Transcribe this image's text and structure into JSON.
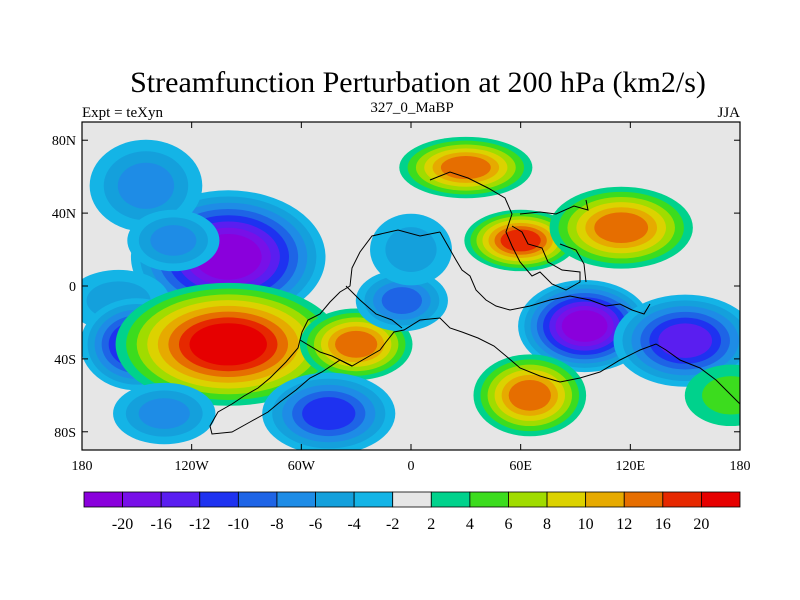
{
  "title": "Streamfunction Perturbation at 200 hPa (km2/s)",
  "left_label": "Expt = teXyn",
  "center_label": "327_0_MaBP",
  "right_label": "JJA",
  "y_ticks": [
    {
      "lat": 80,
      "label": "80N"
    },
    {
      "lat": 40,
      "label": "40N"
    },
    {
      "lat": 0,
      "label": "0"
    },
    {
      "lat": -40,
      "label": "40S"
    },
    {
      "lat": -80,
      "label": "80S"
    }
  ],
  "x_ticks": [
    {
      "lon": -180,
      "label": "180"
    },
    {
      "lon": -120,
      "label": "120W"
    },
    {
      "lon": -60,
      "label": "60W"
    },
    {
      "lon": 0,
      "label": "0"
    },
    {
      "lon": 60,
      "label": "60E"
    },
    {
      "lon": 120,
      "label": "120E"
    },
    {
      "lon": 180,
      "label": "180"
    }
  ],
  "colorbar": {
    "levels": [
      "-20",
      "-16",
      "-12",
      "-10",
      "-8",
      "-6",
      "-4",
      "-2",
      "2",
      "4",
      "6",
      "8",
      "10",
      "12",
      "16",
      "20"
    ],
    "colors": [
      "#8a00dc",
      "#7810e8",
      "#5a1ef0",
      "#1e32f0",
      "#1e64e6",
      "#1e8ce6",
      "#14a0dc",
      "#14b4e6",
      "#e6e6e6",
      "#00d28c",
      "#3cdc1e",
      "#a0dc00",
      "#dcd200",
      "#e6aa00",
      "#e66e00",
      "#e62800",
      "#e60000"
    ]
  },
  "chart_data": {
    "type": "heatmap",
    "title": "Streamfunction Perturbation at 200 hPa (km2/s)",
    "xlim": [
      -180,
      180
    ],
    "ylim": [
      -90,
      90
    ],
    "background_color": "#e6e6e6",
    "contour_levels": [
      -20,
      -16,
      -12,
      -10,
      -8,
      -6,
      -4,
      -2,
      2,
      4,
      6,
      8,
      10,
      12,
      16,
      20
    ],
    "features": [
      {
        "lon": -100,
        "lat": 16,
        "value": -20
      },
      {
        "lon": -145,
        "lat": 55,
        "value": -7
      },
      {
        "lon": -130,
        "lat": 25,
        "value": -6
      },
      {
        "lon": -160,
        "lat": -8,
        "value": -4
      },
      {
        "lon": -150,
        "lat": -32,
        "value": -12
      },
      {
        "lon": -100,
        "lat": -32,
        "value": 20
      },
      {
        "lon": -30,
        "lat": -32,
        "value": 14
      },
      {
        "lon": -45,
        "lat": -70,
        "value": -10
      },
      {
        "lon": -135,
        "lat": -70,
        "value": -6
      },
      {
        "lon": 95,
        "lat": -22,
        "value": -20
      },
      {
        "lon": 150,
        "lat": -30,
        "value": -12
      },
      {
        "lon": -5,
        "lat": -8,
        "value": -8
      },
      {
        "lon": 0,
        "lat": 20,
        "value": -5
      },
      {
        "lon": 30,
        "lat": 65,
        "value": 12
      },
      {
        "lon": 60,
        "lat": 25,
        "value": 16
      },
      {
        "lon": 115,
        "lat": 32,
        "value": 12
      },
      {
        "lon": 65,
        "lat": -60,
        "value": 12
      },
      {
        "lon": 175,
        "lat": -60,
        "value": 4
      }
    ]
  }
}
